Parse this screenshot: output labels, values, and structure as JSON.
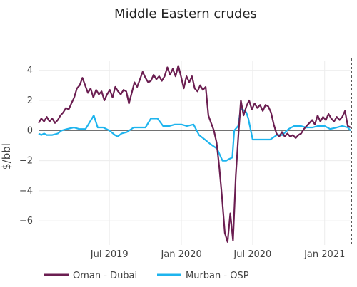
{
  "chart_data": {
    "type": "line",
    "title": "Middle Eastern crudes",
    "xlabel": "",
    "ylabel": "$/bbl",
    "x_ticks": [
      "Jul 2019",
      "Jan 2020",
      "Jul 2020",
      "Jan 2021"
    ],
    "y_ticks": [
      "4",
      "2",
      "0",
      "−2",
      "−4",
      "−6"
    ],
    "ylim": [
      -7.6,
      4.6
    ],
    "xlim": [
      "2019-01-01",
      "2021-03-10"
    ],
    "grid": true,
    "zero_line": true,
    "vertical_dashed_line_at": "2021-03-10",
    "legend_position": "bottom",
    "series": [
      {
        "name": "Oman - Dubai",
        "color": "#6b1e51",
        "points": [
          [
            "2019-01-01",
            0.5
          ],
          [
            "2019-01-08",
            0.8
          ],
          [
            "2019-01-15",
            0.6
          ],
          [
            "2019-01-22",
            0.9
          ],
          [
            "2019-01-29",
            0.6
          ],
          [
            "2019-02-05",
            0.8
          ],
          [
            "2019-02-12",
            0.5
          ],
          [
            "2019-02-19",
            0.7
          ],
          [
            "2019-02-26",
            1.0
          ],
          [
            "2019-03-05",
            1.2
          ],
          [
            "2019-03-12",
            1.5
          ],
          [
            "2019-03-19",
            1.4
          ],
          [
            "2019-03-26",
            1.8
          ],
          [
            "2019-04-02",
            2.2
          ],
          [
            "2019-04-09",
            2.8
          ],
          [
            "2019-04-16",
            3.0
          ],
          [
            "2019-04-23",
            3.5
          ],
          [
            "2019-04-30",
            3.0
          ],
          [
            "2019-05-07",
            2.5
          ],
          [
            "2019-05-14",
            2.8
          ],
          [
            "2019-05-21",
            2.2
          ],
          [
            "2019-05-28",
            2.7
          ],
          [
            "2019-06-04",
            2.4
          ],
          [
            "2019-06-11",
            2.6
          ],
          [
            "2019-06-18",
            2.0
          ],
          [
            "2019-06-25",
            2.4
          ],
          [
            "2019-07-02",
            2.7
          ],
          [
            "2019-07-09",
            2.2
          ],
          [
            "2019-07-16",
            2.9
          ],
          [
            "2019-07-23",
            2.6
          ],
          [
            "2019-07-30",
            2.4
          ],
          [
            "2019-08-06",
            2.7
          ],
          [
            "2019-08-13",
            2.6
          ],
          [
            "2019-08-20",
            1.8
          ],
          [
            "2019-08-27",
            2.5
          ],
          [
            "2019-09-03",
            3.2
          ],
          [
            "2019-09-10",
            2.9
          ],
          [
            "2019-09-17",
            3.4
          ],
          [
            "2019-09-24",
            3.9
          ],
          [
            "2019-10-01",
            3.5
          ],
          [
            "2019-10-08",
            3.2
          ],
          [
            "2019-10-15",
            3.3
          ],
          [
            "2019-10-22",
            3.7
          ],
          [
            "2019-10-29",
            3.4
          ],
          [
            "2019-11-05",
            3.6
          ],
          [
            "2019-11-12",
            3.3
          ],
          [
            "2019-11-19",
            3.6
          ],
          [
            "2019-11-26",
            4.2
          ],
          [
            "2019-12-03",
            3.7
          ],
          [
            "2019-12-10",
            4.1
          ],
          [
            "2019-12-17",
            3.6
          ],
          [
            "2019-12-24",
            4.3
          ],
          [
            "2019-12-31",
            3.6
          ],
          [
            "2020-01-07",
            2.8
          ],
          [
            "2020-01-14",
            3.6
          ],
          [
            "2020-01-21",
            3.2
          ],
          [
            "2020-01-28",
            3.6
          ],
          [
            "2020-02-04",
            2.8
          ],
          [
            "2020-02-11",
            2.6
          ],
          [
            "2020-02-18",
            3.0
          ],
          [
            "2020-02-25",
            2.7
          ],
          [
            "2020-03-03",
            2.9
          ],
          [
            "2020-03-10",
            1.0
          ],
          [
            "2020-03-17",
            0.5
          ],
          [
            "2020-03-24",
            0.0
          ],
          [
            "2020-03-31",
            -0.8
          ],
          [
            "2020-04-07",
            -2.5
          ],
          [
            "2020-04-14",
            -4.5
          ],
          [
            "2020-04-21",
            -6.8
          ],
          [
            "2020-04-28",
            -7.4
          ],
          [
            "2020-05-05",
            -5.5
          ],
          [
            "2020-05-12",
            -7.3
          ],
          [
            "2020-05-19",
            -3.0
          ],
          [
            "2020-05-26",
            -0.2
          ],
          [
            "2020-06-01",
            2.0
          ],
          [
            "2020-06-08",
            1.0
          ],
          [
            "2020-06-15",
            1.6
          ],
          [
            "2020-06-22",
            2.0
          ],
          [
            "2020-06-29",
            1.4
          ],
          [
            "2020-07-06",
            1.8
          ],
          [
            "2020-07-13",
            1.5
          ],
          [
            "2020-07-20",
            1.7
          ],
          [
            "2020-07-27",
            1.3
          ],
          [
            "2020-08-03",
            1.7
          ],
          [
            "2020-08-10",
            1.6
          ],
          [
            "2020-08-17",
            1.2
          ],
          [
            "2020-08-24",
            0.4
          ],
          [
            "2020-08-31",
            -0.2
          ],
          [
            "2020-09-07",
            -0.4
          ],
          [
            "2020-09-14",
            -0.1
          ],
          [
            "2020-09-21",
            -0.4
          ],
          [
            "2020-09-28",
            -0.2
          ],
          [
            "2020-10-05",
            -0.4
          ],
          [
            "2020-10-12",
            -0.3
          ],
          [
            "2020-10-19",
            -0.5
          ],
          [
            "2020-10-26",
            -0.3
          ],
          [
            "2020-11-02",
            -0.2
          ],
          [
            "2020-11-09",
            0.1
          ],
          [
            "2020-11-16",
            0.3
          ],
          [
            "2020-11-23",
            0.5
          ],
          [
            "2020-11-30",
            0.7
          ],
          [
            "2020-12-07",
            0.4
          ],
          [
            "2020-12-14",
            1.0
          ],
          [
            "2020-12-21",
            0.6
          ],
          [
            "2020-12-28",
            0.9
          ],
          [
            "2021-01-04",
            0.7
          ],
          [
            "2021-01-11",
            1.1
          ],
          [
            "2021-01-18",
            0.8
          ],
          [
            "2021-01-25",
            0.6
          ],
          [
            "2021-02-01",
            0.9
          ],
          [
            "2021-02-08",
            0.7
          ],
          [
            "2021-02-15",
            0.9
          ],
          [
            "2021-02-22",
            1.3
          ],
          [
            "2021-03-01",
            0.3
          ],
          [
            "2021-03-08",
            0.2
          ]
        ]
      },
      {
        "name": "Murban - OSP",
        "color": "#1eb4ee",
        "points": [
          [
            "2019-01-01",
            -0.2
          ],
          [
            "2019-01-08",
            -0.3
          ],
          [
            "2019-01-15",
            -0.2
          ],
          [
            "2019-01-22",
            -0.3
          ],
          [
            "2019-02-05",
            -0.3
          ],
          [
            "2019-02-19",
            -0.2
          ],
          [
            "2019-03-01",
            0.0
          ],
          [
            "2019-03-15",
            0.1
          ],
          [
            "2019-04-01",
            0.2
          ],
          [
            "2019-04-15",
            0.1
          ],
          [
            "2019-05-01",
            0.1
          ],
          [
            "2019-05-15",
            0.7
          ],
          [
            "2019-05-22",
            1.0
          ],
          [
            "2019-06-01",
            0.2
          ],
          [
            "2019-06-15",
            0.2
          ],
          [
            "2019-07-01",
            0.0
          ],
          [
            "2019-07-15",
            -0.3
          ],
          [
            "2019-07-22",
            -0.4
          ],
          [
            "2019-08-01",
            -0.2
          ],
          [
            "2019-08-15",
            -0.1
          ],
          [
            "2019-09-01",
            0.2
          ],
          [
            "2019-09-15",
            0.2
          ],
          [
            "2019-10-01",
            0.2
          ],
          [
            "2019-10-15",
            0.8
          ],
          [
            "2019-11-01",
            0.8
          ],
          [
            "2019-11-15",
            0.3
          ],
          [
            "2019-12-01",
            0.3
          ],
          [
            "2019-12-15",
            0.4
          ],
          [
            "2020-01-01",
            0.4
          ],
          [
            "2020-01-15",
            0.3
          ],
          [
            "2020-02-01",
            0.4
          ],
          [
            "2020-02-15",
            -0.3
          ],
          [
            "2020-03-01",
            -0.6
          ],
          [
            "2020-03-15",
            -0.9
          ],
          [
            "2020-04-01",
            -1.2
          ],
          [
            "2020-04-15",
            -2.0
          ],
          [
            "2020-04-25",
            -2.0
          ],
          [
            "2020-05-01",
            -1.9
          ],
          [
            "2020-05-10",
            -1.8
          ],
          [
            "2020-05-15",
            0.0
          ],
          [
            "2020-05-25",
            0.3
          ],
          [
            "2020-06-01",
            1.5
          ],
          [
            "2020-06-15",
            1.2
          ],
          [
            "2020-06-20",
            0.8
          ],
          [
            "2020-07-01",
            -0.6
          ],
          [
            "2020-07-15",
            -0.6
          ],
          [
            "2020-08-01",
            -0.6
          ],
          [
            "2020-08-15",
            -0.6
          ],
          [
            "2020-09-01",
            -0.3
          ],
          [
            "2020-09-15",
            -0.3
          ],
          [
            "2020-10-01",
            0.1
          ],
          [
            "2020-10-15",
            0.3
          ],
          [
            "2020-11-01",
            0.3
          ],
          [
            "2020-11-15",
            0.2
          ],
          [
            "2020-12-01",
            0.2
          ],
          [
            "2020-12-15",
            0.3
          ],
          [
            "2021-01-01",
            0.3
          ],
          [
            "2021-01-15",
            0.1
          ],
          [
            "2021-02-01",
            0.2
          ],
          [
            "2021-02-15",
            0.3
          ],
          [
            "2021-03-01",
            0.2
          ],
          [
            "2021-03-08",
            0.0
          ]
        ]
      }
    ]
  }
}
